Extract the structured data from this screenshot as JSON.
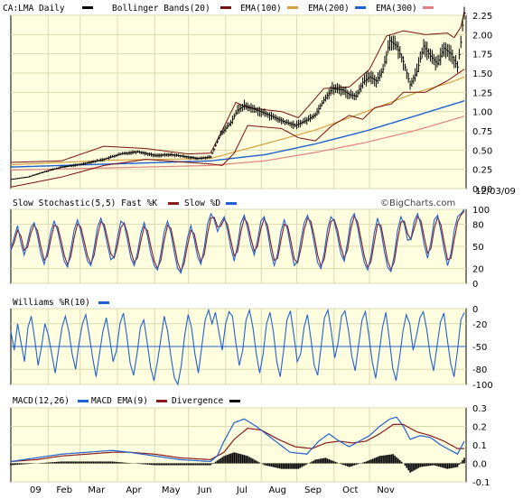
{
  "chart_data": [
    {
      "panel": "price",
      "type": "candlestick",
      "ticker": "CA:LMA",
      "period": "Daily",
      "date_label": "12/03/09",
      "legend": [
        {
          "label": "CA:LMA Daily",
          "color": "#000000"
        },
        {
          "label": "Bollinger Bands(20)",
          "color": "#7a1010"
        },
        {
          "label": "EMA(100)",
          "color": "#8b1a1a"
        },
        {
          "label": "EMA(200)",
          "color": "#d4a040"
        },
        {
          "label": "EMA(300)",
          "color": "#2060d0"
        },
        {
          "label": "",
          "color": "#e08080"
        }
      ],
      "y_ticks": [
        "2.25",
        "2.00",
        "1.75",
        "1.50",
        "1.25",
        "1.00",
        "0.75",
        "0.50",
        "0.25",
        "0.00"
      ],
      "ylim": [
        0,
        2.25
      ],
      "months": [
        "09",
        "Feb",
        "Mar",
        "Apr",
        "May",
        "Jun",
        "Jul",
        "Aug",
        "Sep",
        "Oct",
        "Nov"
      ],
      "price_path": [
        [
          0,
          0.12
        ],
        [
          10,
          0.15
        ],
        [
          20,
          0.22
        ],
        [
          30,
          0.28
        ],
        [
          40,
          0.31
        ],
        [
          55,
          0.38
        ],
        [
          65,
          0.45
        ],
        [
          75,
          0.48
        ],
        [
          85,
          0.43
        ],
        [
          95,
          0.44
        ],
        [
          105,
          0.41
        ],
        [
          110,
          0.39
        ],
        [
          118,
          0.41
        ],
        [
          124,
          0.71
        ],
        [
          130,
          0.86
        ],
        [
          134,
          1.02
        ],
        [
          138,
          1.08
        ],
        [
          145,
          1.02
        ],
        [
          152,
          0.96
        ],
        [
          160,
          0.88
        ],
        [
          168,
          0.82
        ],
        [
          175,
          0.89
        ],
        [
          180,
          0.96
        ],
        [
          185,
          1.15
        ],
        [
          190,
          1.3
        ],
        [
          196,
          1.28
        ],
        [
          200,
          1.22
        ],
        [
          204,
          1.2
        ],
        [
          208,
          1.38
        ],
        [
          212,
          1.45
        ],
        [
          216,
          1.4
        ],
        [
          220,
          1.55
        ],
        [
          224,
          1.92
        ],
        [
          228,
          1.85
        ],
        [
          232,
          1.65
        ],
        [
          236,
          1.35
        ],
        [
          240,
          1.52
        ],
        [
          244,
          1.85
        ],
        [
          248,
          1.72
        ],
        [
          252,
          1.62
        ],
        [
          256,
          1.82
        ],
        [
          260,
          1.75
        ],
        [
          264,
          1.58
        ],
        [
          266,
          1.9
        ],
        [
          267,
          2.12
        ],
        [
          268,
          2.28
        ]
      ],
      "bollinger_upper": [
        [
          0,
          0.34
        ],
        [
          30,
          0.36
        ],
        [
          55,
          0.55
        ],
        [
          80,
          0.52
        ],
        [
          105,
          0.45
        ],
        [
          118,
          0.46
        ],
        [
          125,
          0.76
        ],
        [
          133,
          1.12
        ],
        [
          140,
          1.05
        ],
        [
          160,
          1.0
        ],
        [
          170,
          0.92
        ],
        [
          185,
          1.3
        ],
        [
          200,
          1.32
        ],
        [
          212,
          1.55
        ],
        [
          222,
          1.98
        ],
        [
          232,
          2.05
        ],
        [
          245,
          2.0
        ],
        [
          258,
          2.02
        ],
        [
          262,
          1.96
        ],
        [
          266,
          2.1
        ],
        [
          268,
          2.3
        ]
      ],
      "bollinger_lower": [
        [
          0,
          0.02
        ],
        [
          30,
          0.15
        ],
        [
          55,
          0.3
        ],
        [
          80,
          0.38
        ],
        [
          105,
          0.34
        ],
        [
          118,
          0.32
        ],
        [
          125,
          0.3
        ],
        [
          132,
          0.46
        ],
        [
          140,
          0.82
        ],
        [
          160,
          0.78
        ],
        [
          170,
          0.66
        ],
        [
          180,
          0.62
        ],
        [
          190,
          0.82
        ],
        [
          200,
          0.95
        ],
        [
          208,
          0.9
        ],
        [
          215,
          1.05
        ],
        [
          225,
          1.1
        ],
        [
          232,
          1.25
        ],
        [
          245,
          1.25
        ],
        [
          258,
          1.4
        ],
        [
          266,
          1.52
        ],
        [
          268,
          1.55
        ]
      ],
      "ema100": [
        [
          0,
          0.31
        ],
        [
          60,
          0.37
        ],
        [
          118,
          0.39
        ],
        [
          150,
          0.58
        ],
        [
          180,
          0.76
        ],
        [
          210,
          1.0
        ],
        [
          240,
          1.25
        ],
        [
          260,
          1.38
        ],
        [
          268,
          1.45
        ]
      ],
      "ema200": [
        [
          0,
          0.28
        ],
        [
          60,
          0.32
        ],
        [
          118,
          0.36
        ],
        [
          150,
          0.44
        ],
        [
          180,
          0.58
        ],
        [
          210,
          0.75
        ],
        [
          240,
          0.95
        ],
        [
          268,
          1.14
        ]
      ],
      "ema300": [
        [
          0,
          0.24
        ],
        [
          60,
          0.27
        ],
        [
          118,
          0.3
        ],
        [
          150,
          0.36
        ],
        [
          180,
          0.47
        ],
        [
          210,
          0.6
        ],
        [
          240,
          0.76
        ],
        [
          268,
          0.94
        ]
      ]
    },
    {
      "panel": "stochastic",
      "type": "line",
      "title": "Slow Stochastic(5,5) Fast %K",
      "series": [
        {
          "name": "Slow %D",
          "color": "#2060d0"
        },
        {
          "name": "",
          "color": "#8b1a1a"
        }
      ],
      "y_ticks": [
        "100",
        "80",
        "50",
        "20",
        "0"
      ],
      "ylim": [
        0,
        100
      ],
      "values": [
        45,
        62,
        78,
        55,
        38,
        56,
        75,
        82,
        64,
        40,
        26,
        44,
        70,
        84,
        72,
        50,
        30,
        22,
        46,
        72,
        86,
        70,
        48,
        30,
        24,
        48,
        76,
        88,
        74,
        52,
        32,
        36,
        62,
        84,
        80,
        58,
        34,
        24,
        42,
        68,
        82,
        64,
        40,
        24,
        18,
        40,
        70,
        84,
        68,
        42,
        20,
        14,
        36,
        62,
        78,
        60,
        36,
        26,
        48,
        80,
        94,
        86,
        70,
        82,
        90,
        72,
        48,
        30,
        52,
        82,
        92,
        74,
        52,
        38,
        58,
        84,
        90,
        70,
        42,
        24,
        40,
        70,
        86,
        72,
        46,
        24,
        30,
        58,
        82,
        92,
        78,
        54,
        28,
        20,
        42,
        74,
        90,
        84,
        64,
        40,
        30,
        56,
        86,
        94,
        76,
        50,
        28,
        18,
        36,
        68,
        88,
        72,
        44,
        22,
        16,
        38,
        72,
        90,
        80,
        58,
        60,
        84,
        94,
        78,
        52,
        34,
        56,
        86,
        92,
        70,
        44,
        24,
        40,
        72,
        90,
        94,
        100
      ]
    },
    {
      "panel": "williams",
      "type": "line",
      "title": "Williams %R(10)",
      "series": [
        {
          "name": "",
          "color": "#2060d0"
        }
      ],
      "y_ticks": [
        "0",
        "-20",
        "-50",
        "-80",
        "-100"
      ],
      "ylim": [
        -100,
        0
      ],
      "midline": -50,
      "values": [
        -30,
        -55,
        -20,
        -45,
        -70,
        -25,
        -10,
        -40,
        -75,
        -50,
        -20,
        -35,
        -60,
        -85,
        -55,
        -25,
        -10,
        -30,
        -60,
        -80,
        -45,
        -20,
        -8,
        -35,
        -65,
        -90,
        -60,
        -30,
        -12,
        -40,
        -70,
        -55,
        -20,
        -6,
        -35,
        -72,
        -88,
        -60,
        -25,
        -15,
        -45,
        -78,
        -95,
        -70,
        -40,
        -10,
        -30,
        -65,
        -92,
        -100,
        -75,
        -35,
        -8,
        -25,
        -60,
        -85,
        -50,
        -15,
        -2,
        -20,
        -5,
        -30,
        -55,
        -20,
        -4,
        -10,
        -45,
        -75,
        -55,
        -15,
        -2,
        -25,
        -60,
        -85,
        -60,
        -20,
        -5,
        -30,
        -70,
        -90,
        -55,
        -15,
        -3,
        -35,
        -70,
        -60,
        -25,
        -8,
        -40,
        -75,
        -88,
        -50,
        -12,
        -2,
        -30,
        -65,
        -45,
        -10,
        -3,
        -28,
        -62,
        -82,
        -48,
        -15,
        -4,
        -35,
        -70,
        -92,
        -60,
        -25,
        -5,
        -40,
        -78,
        -95,
        -65,
        -30,
        -8,
        -20,
        -55,
        -35,
        -12,
        -4,
        -28,
        -62,
        -82,
        -50,
        -18,
        -6,
        -40,
        -72,
        -90,
        -55,
        -15,
        -5
      ]
    },
    {
      "panel": "macd",
      "type": "line",
      "title": "MACD(12,26)",
      "series": [
        {
          "name": "MACD EMA(9)",
          "color": "#2060d0"
        },
        {
          "name": "Divergence",
          "color": "#8b1a1a"
        },
        {
          "name": "",
          "color": "#000000"
        }
      ],
      "y_ticks": [
        "0.3",
        "0.2",
        "0.1",
        "0.0",
        "-0.1"
      ],
      "ylim": [
        -0.1,
        0.3
      ],
      "macd": [
        [
          0,
          0.01
        ],
        [
          15,
          0.03
        ],
        [
          30,
          0.05
        ],
        [
          45,
          0.06
        ],
        [
          60,
          0.07
        ],
        [
          70,
          0.06
        ],
        [
          85,
          0.04
        ],
        [
          100,
          0.02
        ],
        [
          118,
          0.01
        ],
        [
          122,
          0.04
        ],
        [
          126,
          0.12
        ],
        [
          132,
          0.22
        ],
        [
          138,
          0.24
        ],
        [
          145,
          0.2
        ],
        [
          155,
          0.13
        ],
        [
          165,
          0.06
        ],
        [
          175,
          0.05
        ],
        [
          182,
          0.12
        ],
        [
          188,
          0.16
        ],
        [
          194,
          0.12
        ],
        [
          200,
          0.09
        ],
        [
          206,
          0.12
        ],
        [
          212,
          0.15
        ],
        [
          218,
          0.2
        ],
        [
          224,
          0.24
        ],
        [
          228,
          0.25
        ],
        [
          232,
          0.2
        ],
        [
          236,
          0.13
        ],
        [
          242,
          0.15
        ],
        [
          248,
          0.14
        ],
        [
          254,
          0.1
        ],
        [
          260,
          0.07
        ],
        [
          264,
          0.05
        ],
        [
          268,
          0.12
        ]
      ],
      "signal": [
        [
          0,
          0.01
        ],
        [
          15,
          0.02
        ],
        [
          30,
          0.04
        ],
        [
          45,
          0.05
        ],
        [
          60,
          0.06
        ],
        [
          70,
          0.06
        ],
        [
          85,
          0.05
        ],
        [
          100,
          0.03
        ],
        [
          118,
          0.02
        ],
        [
          126,
          0.06
        ],
        [
          132,
          0.13
        ],
        [
          140,
          0.19
        ],
        [
          148,
          0.18
        ],
        [
          158,
          0.13
        ],
        [
          168,
          0.09
        ],
        [
          178,
          0.08
        ],
        [
          186,
          0.11
        ],
        [
          194,
          0.12
        ],
        [
          202,
          0.11
        ],
        [
          210,
          0.12
        ],
        [
          218,
          0.16
        ],
        [
          226,
          0.21
        ],
        [
          232,
          0.21
        ],
        [
          240,
          0.17
        ],
        [
          248,
          0.15
        ],
        [
          256,
          0.12
        ],
        [
          264,
          0.08
        ],
        [
          268,
          0.08
        ]
      ],
      "divergence": [
        [
          0,
          -0.01
        ],
        [
          15,
          0.0
        ],
        [
          30,
          0.01
        ],
        [
          60,
          0.01
        ],
        [
          85,
          -0.01
        ],
        [
          100,
          -0.01
        ],
        [
          118,
          -0.01
        ],
        [
          126,
          0.04
        ],
        [
          132,
          0.06
        ],
        [
          140,
          0.04
        ],
        [
          150,
          -0.01
        ],
        [
          160,
          -0.03
        ],
        [
          170,
          -0.03
        ],
        [
          180,
          0.02
        ],
        [
          186,
          0.03
        ],
        [
          194,
          0.0
        ],
        [
          200,
          -0.02
        ],
        [
          210,
          0.01
        ],
        [
          218,
          0.04
        ],
        [
          226,
          0.05
        ],
        [
          232,
          0.0
        ],
        [
          236,
          -0.05
        ],
        [
          242,
          -0.02
        ],
        [
          250,
          -0.01
        ],
        [
          258,
          -0.03
        ],
        [
          264,
          -0.02
        ],
        [
          268,
          0.03
        ]
      ]
    }
  ],
  "watermark": "©BigCharts.com"
}
